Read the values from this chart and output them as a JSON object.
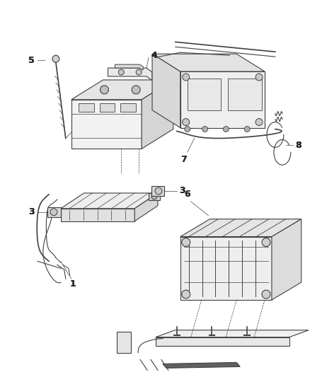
{
  "background_color": "#ffffff",
  "line_color": "#404040",
  "label_color": "#222222",
  "fig_width": 4.38,
  "fig_height": 5.33,
  "dpi": 100
}
